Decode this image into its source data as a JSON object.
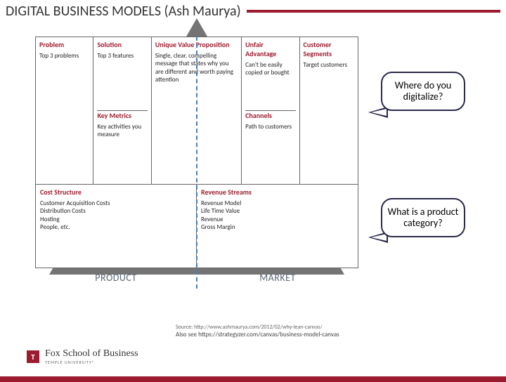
{
  "title": "DIGITAL BUSINESS MODELS (Ash Maurya)",
  "canvas": {
    "problem": {
      "hd": "Problem",
      "bd": "Top 3 problems"
    },
    "solution": {
      "hd": "Solution",
      "bd": "Top 3 features"
    },
    "key_metrics": {
      "hd": "Key Metrics",
      "bd": "Key activities you measure"
    },
    "uvp": {
      "hd": "Unique Value Proposition",
      "bd": "Single, clear, compelling message that states why you are different and worth paying attention"
    },
    "unfair": {
      "hd": "Unfair Advantage",
      "bd": "Can't be easily copied or bought"
    },
    "channels": {
      "hd": "Channels",
      "bd": "Path to customers"
    },
    "segments": {
      "hd": "Customer Segments",
      "bd": "Target customers"
    },
    "cost": {
      "hd": "Cost Structure",
      "bd": "Customer Acquisition Costs\nDistribution Costs\nHosting\nPeople, etc."
    },
    "revenue": {
      "hd": "Revenue Streams",
      "bd": "Revenue Model\nLife Time Value\nRevenue\nGross Margin"
    }
  },
  "labels": {
    "product": "PRODUCT",
    "market": "MARKET"
  },
  "bubbles": {
    "b1": "Where do you digitalize?",
    "b2": "What is a product category?"
  },
  "footer": {
    "source": "Source: http://www.ashmaurya.com/2012/02/why-lean-canvas/",
    "also": "Also see https://strategyzer.com/canvas/business-model-canvas"
  },
  "logo": {
    "t": "T",
    "main": "Fox School of Business",
    "sub": "TEMPLE UNIVERSITY®"
  },
  "colors": {
    "accent": "#9d1b2e",
    "dash": "#4a7ab8",
    "triangle": "#747474",
    "bubble_border": "#2a2a4a"
  }
}
